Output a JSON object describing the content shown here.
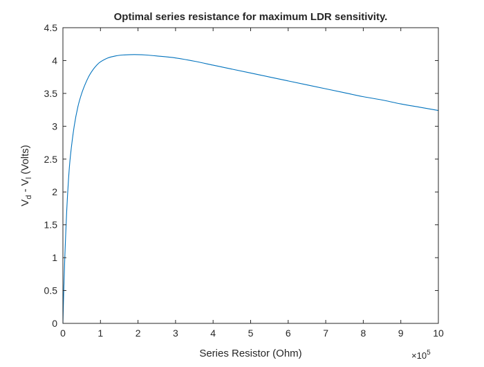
{
  "chart_data": {
    "type": "line",
    "title": "Optimal series resistance for maximum LDR sensitivity.",
    "xlabel": "Series Resistor (Ohm)",
    "ylabel": {
      "v1": "V",
      "sub1": "d",
      "mid": " - V",
      "sub2": "l",
      "end": " (Volts)"
    },
    "x_exponent": {
      "base": "×10",
      "power": "5"
    },
    "xlim": [
      0,
      10
    ],
    "ylim": [
      0,
      4.5
    ],
    "x_ticks": [
      0,
      1,
      2,
      3,
      4,
      5,
      6,
      7,
      8,
      9,
      10
    ],
    "y_ticks": [
      0,
      0.5,
      1,
      1.5,
      2,
      2.5,
      3,
      3.5,
      4,
      4.5
    ],
    "grid": false,
    "series": [
      {
        "color": "#0072bd",
        "x": [
          0,
          0.02,
          0.05,
          0.1,
          0.15,
          0.2,
          0.3,
          0.4,
          0.5,
          0.6,
          0.7,
          0.8,
          0.9,
          1.0,
          1.2,
          1.4,
          1.6,
          1.8,
          2.0,
          2.2,
          2.5,
          3.0,
          3.5,
          4.0,
          4.5,
          5.0,
          5.5,
          6.0,
          6.5,
          7.0,
          7.5,
          8.0,
          8.5,
          9.0,
          9.5,
          10.0
        ],
        "y": [
          0,
          0.45,
          1.0,
          1.7,
          2.2,
          2.55,
          3.0,
          3.3,
          3.5,
          3.65,
          3.77,
          3.86,
          3.93,
          3.98,
          4.04,
          4.07,
          4.085,
          4.09,
          4.09,
          4.085,
          4.07,
          4.04,
          3.99,
          3.93,
          3.87,
          3.81,
          3.75,
          3.69,
          3.63,
          3.57,
          3.51,
          3.45,
          3.4,
          3.34,
          3.29,
          3.24
        ]
      }
    ]
  }
}
